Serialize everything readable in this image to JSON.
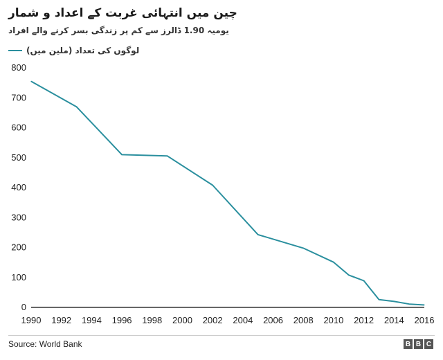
{
  "title": "چین میں انتہائی غربت کے اعداد و شمار",
  "subtitle": "یومیہ 1.90 ڈالرز سے کم  پر زندگی بسر کرنے والے افراد",
  "legend_label": "لوگوں کی تعداد (ملین میں)",
  "source": "Source: World Bank",
  "brand": [
    "B",
    "B",
    "C"
  ],
  "colors": {
    "line": "#2a8f9e",
    "axis": "#333333"
  },
  "chart_data": {
    "type": "line",
    "title": "چین میں انتہائی غربت کے اعداد و شمار",
    "subtitle": "یومیہ 1.90 ڈالرز سے کم  پر زندگی بسر کرنے والے افراد",
    "xlabel": "",
    "ylabel": "",
    "xlim": [
      1990,
      2016
    ],
    "ylim": [
      0,
      800
    ],
    "grid": false,
    "legend": "top-left",
    "x_ticks": [
      1990,
      1992,
      1994,
      1996,
      1998,
      2000,
      2002,
      2004,
      2006,
      2008,
      2010,
      2012,
      2014,
      2016
    ],
    "y_ticks": [
      0,
      100,
      200,
      300,
      400,
      500,
      600,
      700,
      800
    ],
    "series": [
      {
        "name": "لوگوں کی تعداد (ملین میں)",
        "x": [
          1990,
          1993,
          1996,
          1999,
          2002,
          2005,
          2008,
          2010,
          2011,
          2012,
          2013,
          2014,
          2015,
          2016
        ],
        "values": [
          755,
          670,
          510,
          506,
          408,
          243,
          198,
          151,
          108,
          89,
          26,
          20,
          11,
          8
        ]
      }
    ]
  }
}
